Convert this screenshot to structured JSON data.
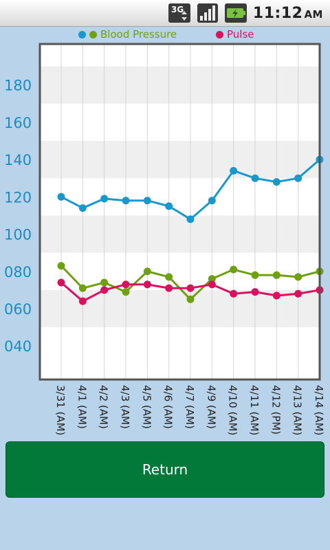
{
  "status_bar": {
    "network": "3G",
    "time": "11:12",
    "ampm": "AM",
    "icons": [
      "3g-data-icon",
      "signal-icon",
      "battery-charging-icon"
    ]
  },
  "legend": {
    "bp_label": "Blood Pressure",
    "pulse_label": "Pulse"
  },
  "colors": {
    "systolic": "#1a98cc",
    "diastolic": "#6ea012",
    "pulse": "#d8125f",
    "y_tick": "#1a8cc0",
    "button": "#027839"
  },
  "chart_data": {
    "type": "line",
    "categories": [
      "3/31 (AM)",
      "4/1 (AM)",
      "4/2 (AM)",
      "4/3 (AM)",
      "4/5 (AM)",
      "4/6 (AM)",
      "4/7 (AM)",
      "4/9 (AM)",
      "4/10 (AM)",
      "4/11 (AM)",
      "4/12 (PM)",
      "4/13 (AM)",
      "4/14 (AM)"
    ],
    "series": [
      {
        "name": "Blood Pressure",
        "role": "systolic",
        "color": "#1a98cc",
        "values": [
          120,
          114,
          119,
          118,
          118,
          115,
          108,
          118,
          134,
          130,
          128,
          130,
          140
        ]
      },
      {
        "name": "Blood Pressure",
        "role": "diastolic",
        "color": "#6ea012",
        "values": [
          83,
          71,
          74,
          69,
          80,
          77,
          65,
          76,
          81,
          78,
          78,
          77,
          80
        ]
      },
      {
        "name": "Pulse",
        "role": "pulse",
        "color": "#d8125f",
        "values": [
          74,
          64,
          70,
          73,
          73,
          71,
          71,
          73,
          68,
          69,
          67,
          68,
          70
        ]
      }
    ],
    "y_ticks": [
      "040",
      "060",
      "080",
      "100",
      "120",
      "140",
      "160",
      "180"
    ],
    "ylim": [
      22,
      202
    ],
    "title": "",
    "xlabel": "",
    "ylabel": "",
    "grid": true,
    "legend": "top"
  },
  "button": {
    "return_label": "Return"
  }
}
